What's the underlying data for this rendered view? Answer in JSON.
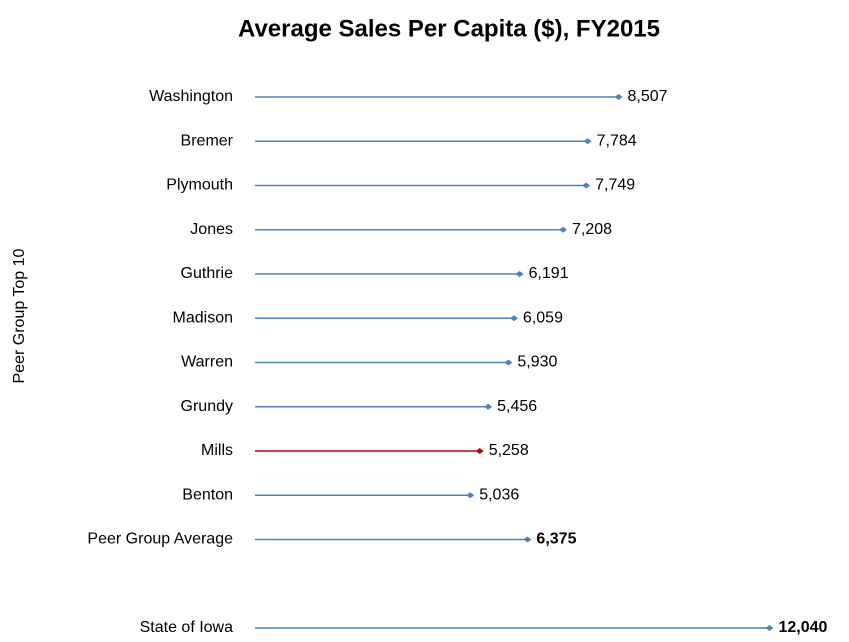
{
  "chart_data": {
    "type": "lollipop",
    "title": "Average Sales Per Capita ($), FY2015",
    "y_label": "Peer Group Top 10",
    "categories": [
      "Washington",
      "Bremer",
      "Plymouth",
      "Jones",
      "Guthrie",
      "Madison",
      "Warren",
      "Grundy",
      "Mills",
      "Benton",
      "Peer Group Average",
      null,
      "State of Iowa"
    ],
    "values": [
      8507,
      7784,
      7749,
      7208,
      6191,
      6059,
      5930,
      5456,
      5258,
      5036,
      6375,
      null,
      12040
    ],
    "value_labels": [
      "8,507",
      "7,784",
      "7,749",
      "7,208",
      "6,191",
      "6,059",
      "5,930",
      "5,456",
      "5,258",
      "5,036",
      "6,375",
      null,
      "12,040"
    ],
    "colors": [
      "#4f81bd",
      "#4f81bd",
      "#4f81bd",
      "#4f81bd",
      "#4f81bd",
      "#4f81bd",
      "#4f81bd",
      "#4f81bd",
      "#c00000",
      "#4f81bd",
      "#4f81bd",
      null,
      "#4f81bd"
    ],
    "bold_labels": [
      false,
      false,
      false,
      false,
      false,
      false,
      false,
      false,
      false,
      false,
      true,
      null,
      true
    ],
    "xlim": [
      0,
      13900
    ]
  }
}
